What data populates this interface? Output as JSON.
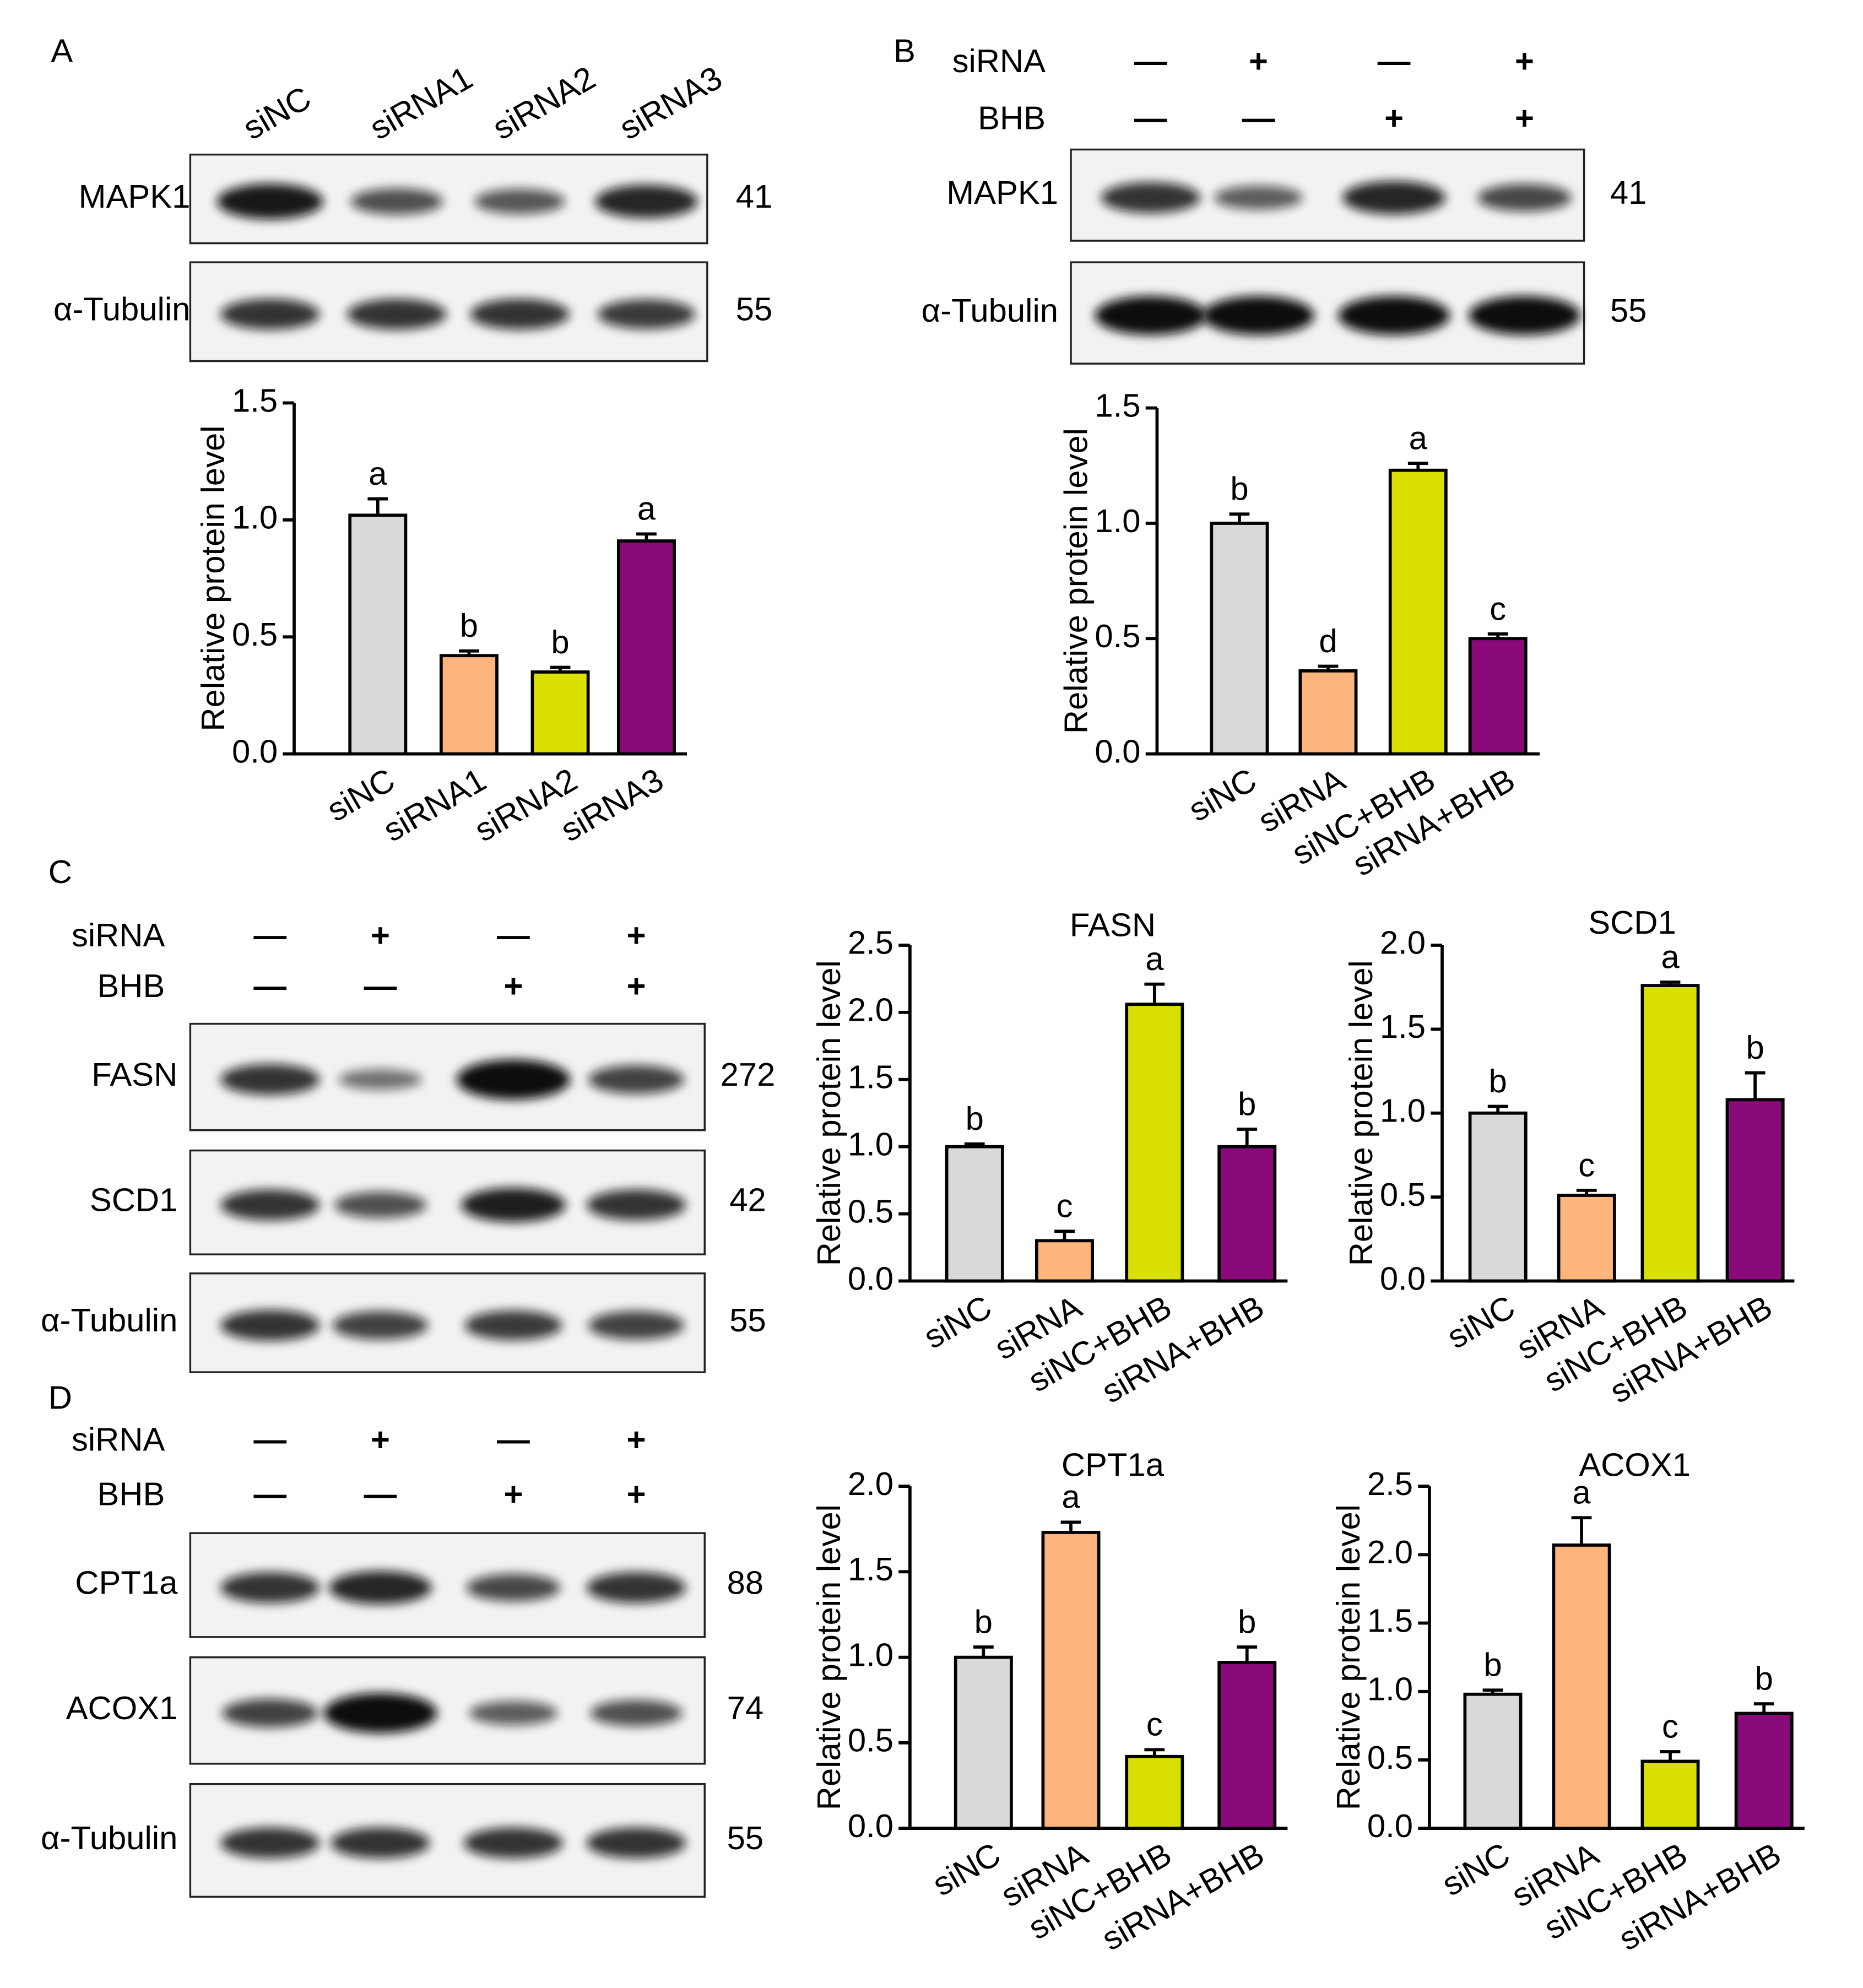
{
  "blots": [
    {
      "label": "A",
      "lanes": [
        "siNC",
        "siRNA1",
        "siRNA2",
        "siRNA3"
      ],
      "conditions": [],
      "rows": [
        {
          "name": "MAPK1",
          "kda": "41"
        },
        {
          "name": "α-Tubulin",
          "kda": "55"
        }
      ]
    },
    {
      "label": "B",
      "lanes": [],
      "conditions": [
        {
          "name": "siRNA",
          "signs": [
            "—",
            "+",
            "—",
            "+"
          ]
        },
        {
          "name": "BHB",
          "signs": [
            "—",
            "—",
            "+",
            "+"
          ]
        }
      ],
      "rows": [
        {
          "name": "MAPK1",
          "kda": "41"
        },
        {
          "name": "α-Tubulin",
          "kda": "55"
        }
      ]
    },
    {
      "label": "C",
      "lanes": [],
      "conditions": [
        {
          "name": "siRNA",
          "signs": [
            "—",
            "+",
            "—",
            "+"
          ]
        },
        {
          "name": "BHB",
          "signs": [
            "—",
            "—",
            "+",
            "+"
          ]
        }
      ],
      "rows": [
        {
          "name": "FASN",
          "kda": "272"
        },
        {
          "name": "SCD1",
          "kda": "42"
        },
        {
          "name": "α-Tubulin",
          "kda": "55"
        }
      ]
    },
    {
      "label": "D",
      "lanes": [],
      "conditions": [
        {
          "name": "siRNA",
          "signs": [
            "—",
            "+",
            "—",
            "+"
          ]
        },
        {
          "name": "BHB",
          "signs": [
            "—",
            "—",
            "+",
            "+"
          ]
        }
      ],
      "rows": [
        {
          "name": "CPT1a",
          "kda": "88"
        },
        {
          "name": "ACOX1",
          "kda": "74"
        },
        {
          "name": "α-Tubulin",
          "kda": "55"
        }
      ]
    }
  ],
  "chart_data": [
    {
      "type": "bar",
      "y_label": "Relative protein level",
      "categories": [
        "siNC",
        "siRNA1",
        "siRNA2",
        "siRNA3"
      ],
      "values": [
        1.02,
        0.42,
        0.35,
        0.91
      ],
      "errors": [
        0.07,
        0.02,
        0.02,
        0.03
      ],
      "annotations": [
        "a",
        "b",
        "b",
        "a"
      ],
      "colors": [
        "#d9d9d9",
        "#fdb57d",
        "#d9e000",
        "#8b0a7a"
      ],
      "ylim": [
        0,
        1.5
      ],
      "yticks": [
        {
          "value": 0,
          "label": "0.0"
        },
        0.5,
        {
          "value": 1,
          "label": "1.0"
        },
        1.5
      ]
    },
    {
      "type": "bar",
      "y_label": "Relative protein level",
      "categories": [
        "siNC",
        "siRNA",
        "siNC+BHB",
        "siRNA+BHB"
      ],
      "values": [
        1.0,
        0.36,
        1.23,
        0.5
      ],
      "errors": [
        0.04,
        0.02,
        0.03,
        0.02
      ],
      "annotations": [
        "b",
        "d",
        "a",
        "c"
      ],
      "colors": [
        "#d9d9d9",
        "#fdb57d",
        "#d9e000",
        "#8b0a7a"
      ],
      "ylim": [
        0,
        1.5
      ],
      "yticks": [
        {
          "value": 0,
          "label": "0.0"
        },
        0.5,
        {
          "value": 1,
          "label": "1.0"
        },
        1.5
      ]
    },
    {
      "type": "bar",
      "title": "FASN",
      "y_label": "Relative protein level",
      "categories": [
        "siNC",
        "siRNA",
        "siNC+BHB",
        "siRNA+BHB"
      ],
      "values": [
        1.0,
        0.3,
        2.06,
        1.0
      ],
      "errors": [
        0.02,
        0.07,
        0.15,
        0.13
      ],
      "annotations": [
        "b",
        "c",
        "a",
        "b"
      ],
      "colors": [
        "#d9d9d9",
        "#fdb57d",
        "#d9e000",
        "#8b0a7a"
      ],
      "ylim": [
        0,
        2.5
      ],
      "yticks": [
        {
          "value": 0,
          "label": "0.0"
        },
        0.5,
        {
          "value": 1,
          "label": "1.0"
        },
        1.5,
        {
          "value": 2,
          "label": "2.0"
        },
        2.5
      ]
    },
    {
      "type": "bar",
      "title": "SCD1",
      "y_label": "Relative protein level",
      "categories": [
        "siNC",
        "siRNA",
        "siNC+BHB",
        "siRNA+BHB"
      ],
      "values": [
        1.0,
        0.51,
        1.76,
        1.08
      ],
      "errors": [
        0.04,
        0.03,
        0.02,
        0.16
      ],
      "annotations": [
        "b",
        "c",
        "a",
        "b"
      ],
      "colors": [
        "#d9d9d9",
        "#fdb57d",
        "#d9e000",
        "#8b0a7a"
      ],
      "ylim": [
        0,
        2
      ],
      "yticks": [
        {
          "value": 0,
          "label": "0.0"
        },
        0.5,
        {
          "value": 1,
          "label": "1.0"
        },
        1.5,
        {
          "value": 2,
          "label": "2.0"
        }
      ]
    },
    {
      "type": "bar",
      "title": "CPT1a",
      "y_label": "Relative protein level",
      "categories": [
        "siNC",
        "siRNA",
        "siNC+BHB",
        "siRNA+BHB"
      ],
      "values": [
        1.0,
        1.73,
        0.42,
        0.97
      ],
      "errors": [
        0.06,
        0.06,
        0.04,
        0.09
      ],
      "annotations": [
        "b",
        "a",
        "c",
        "b"
      ],
      "colors": [
        "#d9d9d9",
        "#fdb57d",
        "#d9e000",
        "#8b0a7a"
      ],
      "ylim": [
        0,
        2
      ],
      "yticks": [
        {
          "value": 0,
          "label": "0.0"
        },
        0.5,
        {
          "value": 1,
          "label": "1.0"
        },
        1.5,
        {
          "value": 2,
          "label": "2.0"
        }
      ]
    },
    {
      "type": "bar",
      "title": "ACOX1",
      "y_label": "Relative protein level",
      "categories": [
        "siNC",
        "siRNA",
        "siNC+BHB",
        "siRNA+BHB"
      ],
      "values": [
        0.98,
        2.07,
        0.49,
        0.84
      ],
      "errors": [
        0.03,
        0.2,
        0.07,
        0.07
      ],
      "annotations": [
        "b",
        "a",
        "c",
        "b"
      ],
      "colors": [
        "#d9d9d9",
        "#fdb57d",
        "#d9e000",
        "#8b0a7a"
      ],
      "ylim": [
        0,
        2.5
      ],
      "yticks": [
        {
          "value": 0,
          "label": "0.0"
        },
        0.5,
        {
          "value": 1,
          "label": "1.0"
        },
        1.5,
        {
          "value": 2,
          "label": "2.0"
        },
        2.5
      ]
    }
  ]
}
